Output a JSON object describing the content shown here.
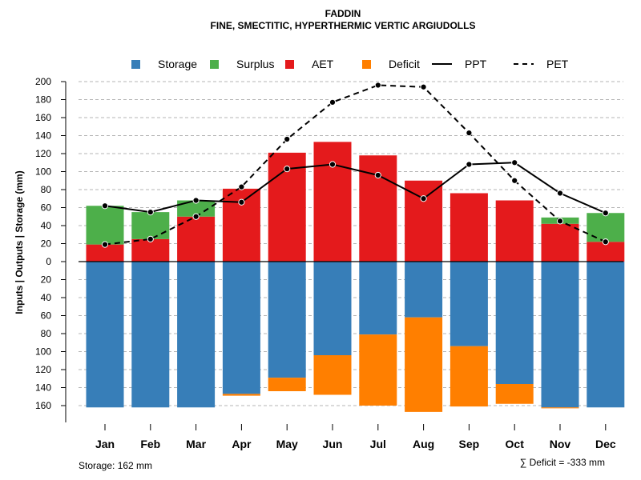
{
  "chart_data": {
    "type": "bar",
    "title": "FADDIN",
    "subtitle": "FINE, SMECTITIC, HYPERTHERMIC VERTIC ARGIUDOLLS",
    "ylabel": "Inputs | Outputs | Storage    (mm)",
    "categories": [
      "Jan",
      "Feb",
      "Mar",
      "Apr",
      "May",
      "Jun",
      "Jul",
      "Aug",
      "Sep",
      "Oct",
      "Nov",
      "Dec"
    ],
    "ylim_positive": [
      0,
      200
    ],
    "ylim_negative": [
      0,
      160
    ],
    "y_ticks_positive": [
      "0",
      "20",
      "40",
      "60",
      "80",
      "100",
      "120",
      "140",
      "160",
      "180",
      "200"
    ],
    "y_ticks_negative": [
      "20",
      "40",
      "60",
      "80",
      "100",
      "120",
      "140",
      "160"
    ],
    "grid": true,
    "legend_position": "top",
    "legend": [
      {
        "label": "Storage",
        "kind": "box",
        "color": "#377EB8"
      },
      {
        "label": "Surplus",
        "kind": "box",
        "color": "#4DAF4A"
      },
      {
        "label": "AET",
        "kind": "box",
        "color": "#E41A1C"
      },
      {
        "label": "Deficit",
        "kind": "box",
        "color": "#FF7F00"
      },
      {
        "label": "PPT",
        "kind": "solid-line",
        "color": "#000000"
      },
      {
        "label": "PET",
        "kind": "dashed-line",
        "color": "#000000"
      }
    ],
    "series": [
      {
        "name": "AET",
        "color": "#E41A1C",
        "values": [
          19,
          25,
          50,
          81,
          121,
          133,
          118,
          90,
          76,
          68,
          42,
          22
        ]
      },
      {
        "name": "Surplus",
        "color": "#4DAF4A",
        "values": [
          43,
          30,
          18,
          0,
          0,
          0,
          0,
          0,
          0,
          0,
          7,
          32
        ]
      },
      {
        "name": "Storage",
        "color": "#377EB8",
        "values": [
          162,
          162,
          162,
          147,
          129,
          104,
          81,
          62,
          94,
          136,
          162,
          162
        ]
      },
      {
        "name": "Deficit",
        "color": "#FF7F00",
        "values": [
          0,
          0,
          0,
          2,
          15,
          44,
          79,
          105,
          67,
          22,
          1,
          0
        ]
      },
      {
        "name": "PPT",
        "color": "#000000",
        "style": "solid",
        "values": [
          62,
          55,
          68,
          66,
          103,
          108,
          96,
          70,
          108,
          110,
          76,
          54
        ]
      },
      {
        "name": "PET",
        "color": "#000000",
        "style": "dashed",
        "values": [
          19,
          25,
          50,
          83,
          136,
          177,
          196,
          194,
          143,
          90,
          45,
          22
        ]
      }
    ],
    "footer_left": "Storage: 162 mm",
    "footer_right": "∑ Deficit = -333 mm"
  }
}
